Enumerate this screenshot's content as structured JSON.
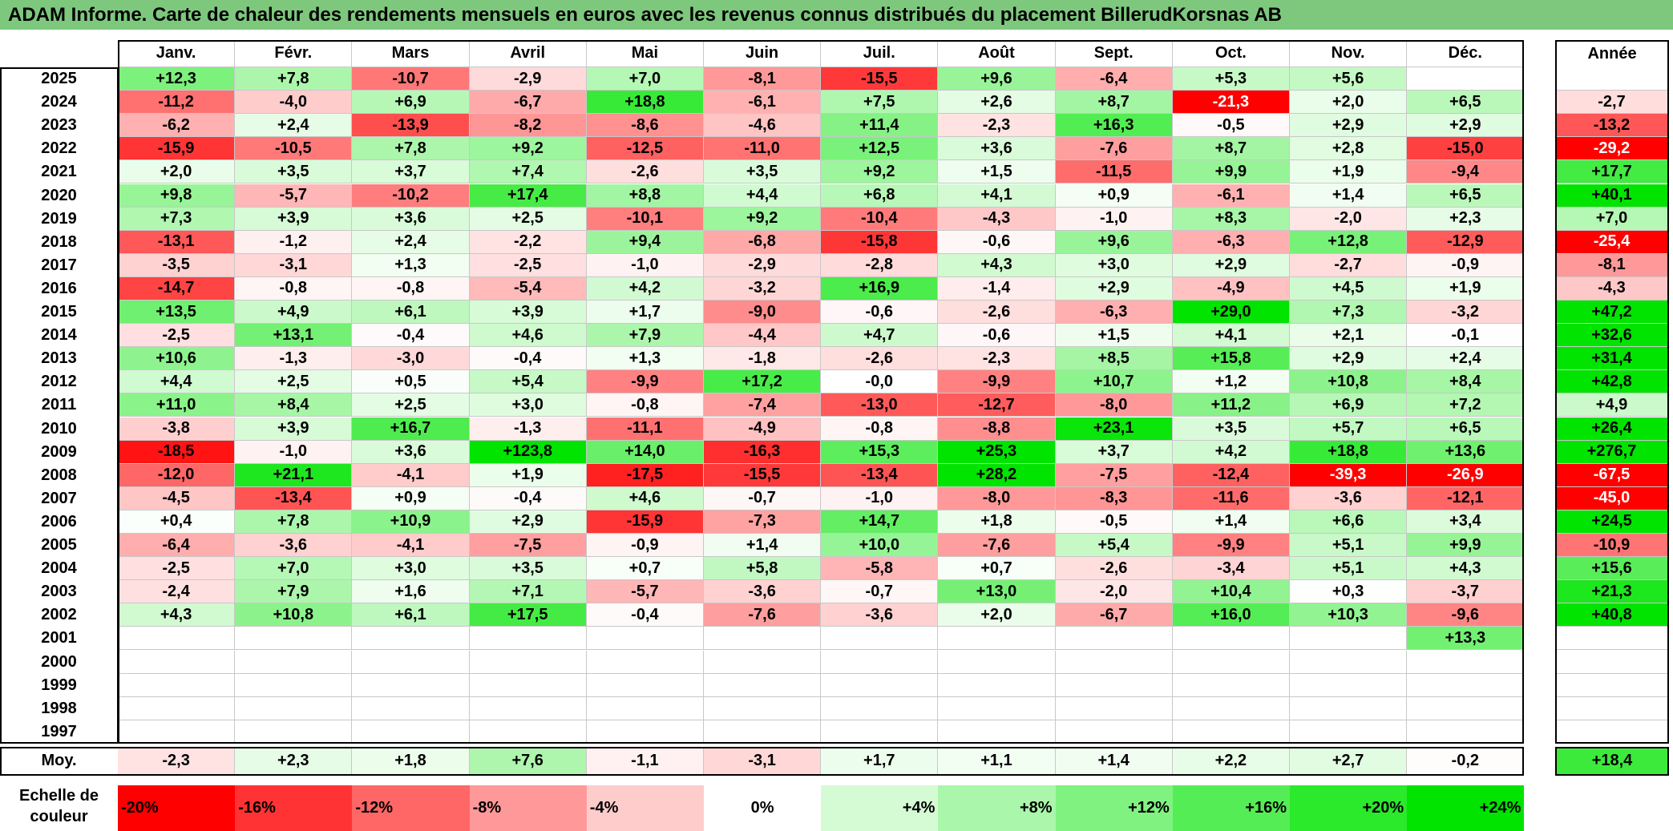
{
  "title": "ADAM Informe. Carte de chaleur des rendements mensuels en euros avec les revenus connus distribués du placement BillerudKorsnas AB",
  "colors": {
    "title_bg": "#7ec87e",
    "neg_strong": "#ff0000",
    "pos_strong": "#00e400",
    "neutral": "#ffffff"
  },
  "chart_data": {
    "type": "heatmap",
    "title": "ADAM Informe. Carte de chaleur des rendements mensuels en euros avec les revenus connus distribués du placement BillerudKorsnas AB",
    "columns": [
      "Janv.",
      "Févr.",
      "Mars",
      "Avril",
      "Mai",
      "Juin",
      "Juil.",
      "Août",
      "Sept.",
      "Oct.",
      "Nov.",
      "Déc."
    ],
    "year_column_label": "Année",
    "average_label": "Moy.",
    "rows": [
      {
        "year": "2025",
        "values": [
          "+12,3",
          "+7,8",
          "-10,7",
          "-2,9",
          "+7,0",
          "-8,1",
          "-15,5",
          "+9,6",
          "-6,4",
          "+5,3",
          "+5,6",
          ""
        ],
        "annual": ""
      },
      {
        "year": "2024",
        "values": [
          "-11,2",
          "-4,0",
          "+6,9",
          "-6,7",
          "+18,8",
          "-6,1",
          "+7,5",
          "+2,6",
          "+8,7",
          "-21,3",
          "+2,0",
          "+6,5"
        ],
        "annual": "-2,7"
      },
      {
        "year": "2023",
        "values": [
          "-6,2",
          "+2,4",
          "-13,9",
          "-8,2",
          "-8,6",
          "-4,6",
          "+11,4",
          "-2,3",
          "+16,3",
          "-0,5",
          "+2,9",
          "+2,9"
        ],
        "annual": "-13,2"
      },
      {
        "year": "2022",
        "values": [
          "-15,9",
          "-10,5",
          "+7,8",
          "+9,2",
          "-12,5",
          "-11,0",
          "+12,5",
          "+3,6",
          "-7,6",
          "+8,7",
          "+2,8",
          "-15,0"
        ],
        "annual": "-29,2"
      },
      {
        "year": "2021",
        "values": [
          "+2,0",
          "+3,5",
          "+3,7",
          "+7,4",
          "-2,6",
          "+3,5",
          "+9,2",
          "+1,5",
          "-11,5",
          "+9,9",
          "+1,9",
          "-9,4"
        ],
        "annual": "+17,7"
      },
      {
        "year": "2020",
        "values": [
          "+9,8",
          "-5,7",
          "-10,2",
          "+17,4",
          "+8,8",
          "+4,4",
          "+6,8",
          "+4,1",
          "+0,9",
          "-6,1",
          "+1,4",
          "+6,5"
        ],
        "annual": "+40,1"
      },
      {
        "year": "2019",
        "values": [
          "+7,3",
          "+3,9",
          "+3,6",
          "+2,5",
          "-10,1",
          "+9,2",
          "-10,4",
          "-4,3",
          "-1,0",
          "+8,3",
          "-2,0",
          "+2,3"
        ],
        "annual": "+7,0"
      },
      {
        "year": "2018",
        "values": [
          "-13,1",
          "-1,2",
          "+2,4",
          "-2,2",
          "+9,4",
          "-6,8",
          "-15,8",
          "-0,6",
          "+9,6",
          "-6,3",
          "+12,8",
          "-12,9"
        ],
        "annual": "-25,4"
      },
      {
        "year": "2017",
        "values": [
          "-3,5",
          "-3,1",
          "+1,3",
          "-2,5",
          "-1,0",
          "-2,9",
          "-2,8",
          "+4,3",
          "+3,0",
          "+2,9",
          "-2,7",
          "-0,9"
        ],
        "annual": "-8,1"
      },
      {
        "year": "2016",
        "values": [
          "-14,7",
          "-0,8",
          "-0,8",
          "-5,4",
          "+4,2",
          "-3,2",
          "+16,9",
          "-1,4",
          "+2,9",
          "-4,9",
          "+4,5",
          "+1,9"
        ],
        "annual": "-4,3"
      },
      {
        "year": "2015",
        "values": [
          "+13,5",
          "+4,9",
          "+6,1",
          "+3,9",
          "+1,7",
          "-9,0",
          "-0,6",
          "-2,6",
          "-6,3",
          "+29,0",
          "+7,3",
          "-3,2"
        ],
        "annual": "+47,2"
      },
      {
        "year": "2014",
        "values": [
          "-2,5",
          "+13,1",
          "-0,4",
          "+4,6",
          "+7,9",
          "-4,4",
          "+4,7",
          "-0,6",
          "+1,5",
          "+4,1",
          "+2,1",
          "-0,1"
        ],
        "annual": "+32,6"
      },
      {
        "year": "2013",
        "values": [
          "+10,6",
          "-1,3",
          "-3,0",
          "-0,4",
          "+1,3",
          "-1,8",
          "-2,6",
          "-2,3",
          "+8,5",
          "+15,8",
          "+2,9",
          "+2,4"
        ],
        "annual": "+31,4"
      },
      {
        "year": "2012",
        "values": [
          "+4,4",
          "+2,5",
          "+0,5",
          "+5,4",
          "-9,9",
          "+17,2",
          "-0,0",
          "-9,9",
          "+10,7",
          "+1,2",
          "+10,8",
          "+8,4"
        ],
        "annual": "+42,8"
      },
      {
        "year": "2011",
        "values": [
          "+11,0",
          "+8,4",
          "+2,5",
          "+3,0",
          "-0,8",
          "-7,4",
          "-13,0",
          "-12,7",
          "-8,0",
          "+11,2",
          "+6,9",
          "+7,2"
        ],
        "annual": "+4,9"
      },
      {
        "year": "2010",
        "values": [
          "-3,8",
          "+3,9",
          "+16,7",
          "-1,3",
          "-11,1",
          "-4,9",
          "-0,8",
          "-8,8",
          "+23,1",
          "+3,5",
          "+5,7",
          "+6,5"
        ],
        "annual": "+26,4"
      },
      {
        "year": "2009",
        "values": [
          "-18,5",
          "-1,0",
          "+3,6",
          "+123,8",
          "+14,0",
          "-16,3",
          "+15,3",
          "+25,3",
          "+3,7",
          "+4,2",
          "+18,8",
          "+13,6"
        ],
        "annual": "+276,7"
      },
      {
        "year": "2008",
        "values": [
          "-12,0",
          "+21,1",
          "-4,1",
          "+1,9",
          "-17,5",
          "-15,5",
          "-13,4",
          "+28,2",
          "-7,5",
          "-12,4",
          "-39,3",
          "-26,9"
        ],
        "annual": "-67,5"
      },
      {
        "year": "2007",
        "values": [
          "-4,5",
          "-13,4",
          "+0,9",
          "-0,4",
          "+4,6",
          "-0,7",
          "-1,0",
          "-8,0",
          "-8,3",
          "-11,6",
          "-3,6",
          "-12,1"
        ],
        "annual": "-45,0"
      },
      {
        "year": "2006",
        "values": [
          "+0,4",
          "+7,8",
          "+10,9",
          "+2,9",
          "-15,9",
          "-7,3",
          "+14,7",
          "+1,8",
          "-0,5",
          "+1,4",
          "+6,6",
          "+3,4"
        ],
        "annual": "+24,5"
      },
      {
        "year": "2005",
        "values": [
          "-6,4",
          "-3,6",
          "-4,1",
          "-7,5",
          "-0,9",
          "+1,4",
          "+10,0",
          "-7,6",
          "+5,4",
          "-9,9",
          "+5,1",
          "+9,9"
        ],
        "annual": "-10,9"
      },
      {
        "year": "2004",
        "values": [
          "-2,5",
          "+7,0",
          "+3,0",
          "+3,5",
          "+0,7",
          "+5,8",
          "-5,8",
          "+0,7",
          "-2,6",
          "-3,4",
          "+5,1",
          "+4,3"
        ],
        "annual": "+15,6"
      },
      {
        "year": "2003",
        "values": [
          "-2,4",
          "+7,9",
          "+1,6",
          "+7,1",
          "-5,7",
          "-3,6",
          "-0,7",
          "+13,0",
          "-2,0",
          "+10,4",
          "+0,3",
          "-3,7"
        ],
        "annual": "+21,3"
      },
      {
        "year": "2002",
        "values": [
          "+4,3",
          "+10,8",
          "+6,1",
          "+17,5",
          "-0,4",
          "-7,6",
          "-3,6",
          "+2,0",
          "-6,7",
          "+16,0",
          "+10,3",
          "-9,6"
        ],
        "annual": "+40,8"
      },
      {
        "year": "2001",
        "values": [
          "",
          "",
          "",
          "",
          "",
          "",
          "",
          "",
          "",
          "",
          "",
          "+13,3"
        ],
        "annual": ""
      },
      {
        "year": "2000",
        "values": [
          "",
          "",
          "",
          "",
          "",
          "",
          "",
          "",
          "",
          "",
          "",
          ""
        ],
        "annual": ""
      },
      {
        "year": "1999",
        "values": [
          "",
          "",
          "",
          "",
          "",
          "",
          "",
          "",
          "",
          "",
          "",
          ""
        ],
        "annual": ""
      },
      {
        "year": "1998",
        "values": [
          "",
          "",
          "",
          "",
          "",
          "",
          "",
          "",
          "",
          "",
          "",
          ""
        ],
        "annual": ""
      },
      {
        "year": "1997",
        "values": [
          "",
          "",
          "",
          "",
          "",
          "",
          "",
          "",
          "",
          "",
          "",
          ""
        ],
        "annual": ""
      }
    ],
    "average": {
      "values": [
        "-2,3",
        "+2,3",
        "+1,8",
        "+7,6",
        "-1,1",
        "-3,1",
        "+1,7",
        "+1,1",
        "+1,4",
        "+2,2",
        "+2,7",
        "-0,2"
      ],
      "annual": "+18,4"
    },
    "color_scale": {
      "label": "Echelle de couleur",
      "stops": [
        "-20%",
        "-16%",
        "-12%",
        "-8%",
        "-4%",
        "0%",
        "+4%",
        "+8%",
        "+12%",
        "+16%",
        "+20%",
        "+24%"
      ]
    }
  }
}
